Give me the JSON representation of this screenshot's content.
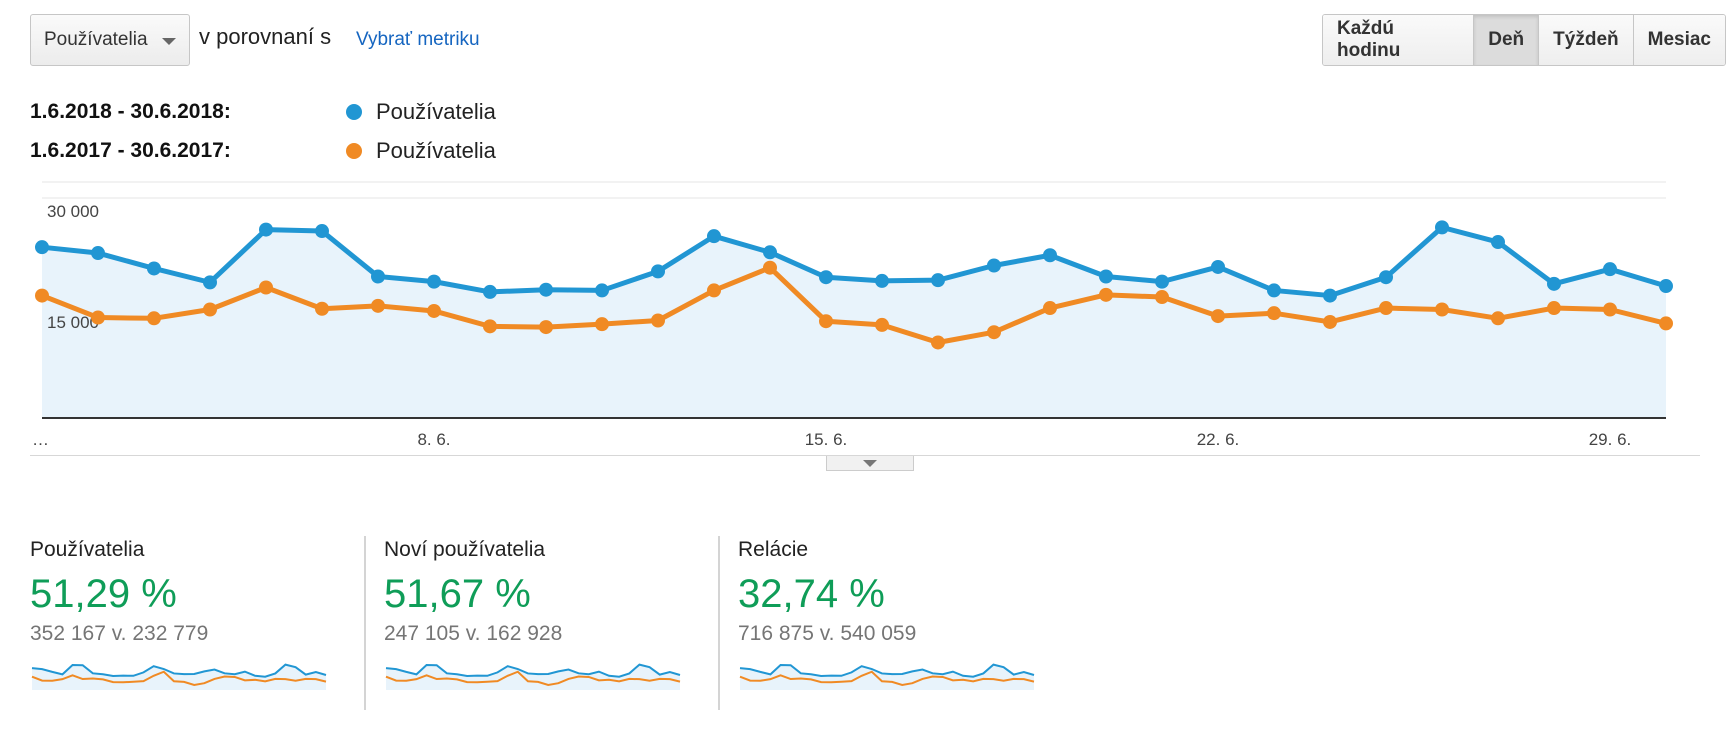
{
  "toolbar": {
    "metric_select_label": "Používatelia",
    "compare_text": "v porovnaní s",
    "pick_metric_link": "Vybrať metriku",
    "granularity": [
      "Každú hodinu",
      "Deň",
      "Týždeň",
      "Mesiac"
    ],
    "granularity_active": "Deň"
  },
  "legend": [
    {
      "range": "1.6.2018 - 30.6.2018:",
      "name": "Používatelia",
      "color": "#2196d3"
    },
    {
      "range": "1.6.2017 - 30.6.2017:",
      "name": "Používatelia",
      "color": "#f08a24"
    }
  ],
  "chart_data": {
    "type": "line",
    "x": [
      "1.6.",
      "2.6.",
      "3.6.",
      "4.6.",
      "5.6.",
      "6.6.",
      "7.6.",
      "8.6.",
      "9.6.",
      "10.6.",
      "11.6.",
      "12.6.",
      "13.6.",
      "14.6.",
      "15.6.",
      "16.6.",
      "17.6.",
      "18.6.",
      "19.6.",
      "20.6.",
      "21.6.",
      "22.6.",
      "23.6.",
      "24.6.",
      "25.6.",
      "26.6.",
      "27.6.",
      "28.6.",
      "29.6.",
      "30.6."
    ],
    "x_tick_labels": [
      {
        "index": 0,
        "label": "…"
      },
      {
        "index": 7,
        "label": "8. 6."
      },
      {
        "index": 14,
        "label": "15. 6."
      },
      {
        "index": 21,
        "label": "22. 6."
      },
      {
        "index": 28,
        "label": "29. 6."
      }
    ],
    "y_ticks": [
      {
        "value": 15000,
        "label": "15 000"
      },
      {
        "value": 30000,
        "label": "30 000"
      }
    ],
    "ylim": [
      0,
      30000
    ],
    "grid": true,
    "series": [
      {
        "name": "Používatelia",
        "period": "1.6.2018 - 30.6.2018",
        "color": "#2196d3",
        "filled": true,
        "values": [
          23300,
          22500,
          20400,
          18500,
          25700,
          25500,
          19300,
          18600,
          17200,
          17500,
          17400,
          20000,
          24800,
          22600,
          19200,
          18700,
          18800,
          20800,
          22200,
          19300,
          18600,
          20600,
          17400,
          16700,
          19200,
          26000,
          24000,
          18300,
          20300,
          18000
        ]
      },
      {
        "name": "Používatelia",
        "period": "1.6.2017 - 30.6.2017",
        "color": "#f08a24",
        "filled": false,
        "values": [
          16700,
          13700,
          13600,
          14800,
          17800,
          14900,
          15300,
          14600,
          12500,
          12400,
          12800,
          13300,
          17400,
          20500,
          13200,
          12700,
          10300,
          11700,
          15000,
          16800,
          16500,
          13900,
          14300,
          13100,
          15000,
          14800,
          13600,
          15000,
          14800,
          12900
        ]
      }
    ]
  },
  "cards": [
    {
      "title": "Používatelia",
      "pct": "51,29 %",
      "compare": "352 167 v. 232 779"
    },
    {
      "title": "Noví používatelia",
      "pct": "51,67 %",
      "compare": "247 105 v. 162 928"
    },
    {
      "title": "Relácie",
      "pct": "32,74 %",
      "compare": "716 875 v. 540 059"
    }
  ]
}
